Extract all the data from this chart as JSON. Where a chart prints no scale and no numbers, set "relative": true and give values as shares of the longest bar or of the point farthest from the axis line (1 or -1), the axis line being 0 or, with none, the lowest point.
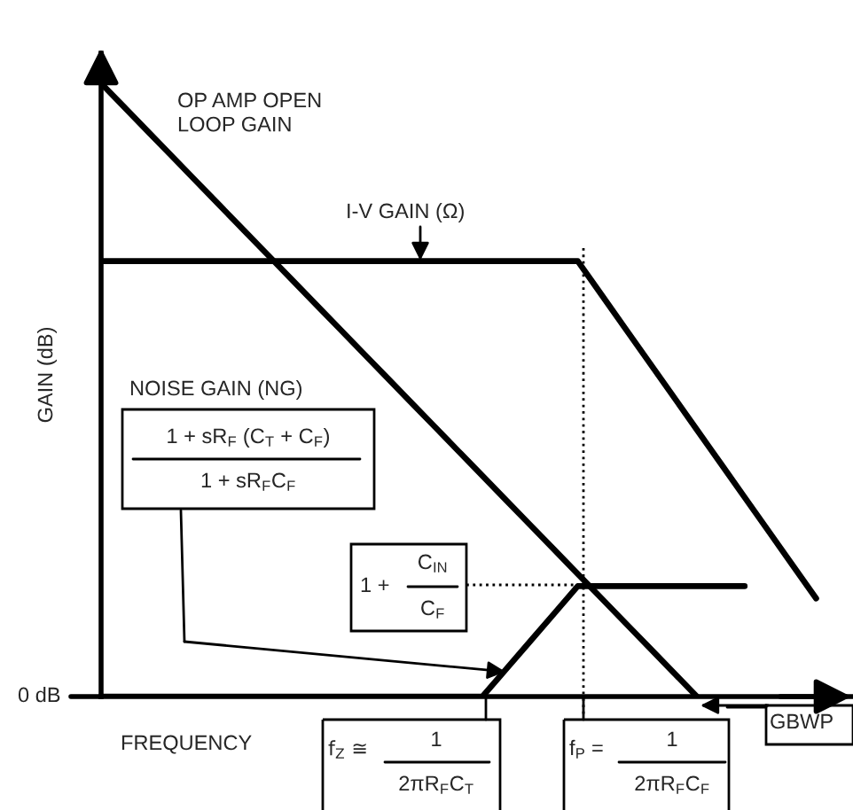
{
  "chart_data": {
    "type": "line",
    "relative": true,
    "ylabel": "GAIN (dB)",
    "categories": [
      null,
      null,
      null,
      null,
      null,
      null,
      null,
      null,
      null,
      null,
      null,
      null,
      null,
      null,
      null,
      null,
      null,
      null,
      null,
      null,
      null,
      null,
      null,
      null,
      null,
      null,
      null,
      null,
      null,
      null,
      null,
      null
    ],
    "series": [
      {
        "color": "#000000",
        "values": [
          1,
          0.96,
          0.92,
          0.88,
          0.84,
          0.8,
          0.76,
          0.72,
          0.68,
          0.64,
          0.6,
          0.56,
          0.52,
          0.48,
          0.44,
          0.4,
          0.36,
          0.32,
          0.28,
          0.24,
          0.2,
          0.16,
          0.12,
          0.08,
          0.04,
          0,
          null,
          null,
          null,
          null,
          null,
          null
        ]
      },
      {
        "color": "#000000",
        "values": [
          0.71,
          0.71,
          0.71,
          0.71,
          0.71,
          0.71,
          0.71,
          0.71,
          0.71,
          0.71,
          0.71,
          0.71,
          0.71,
          0.71,
          0.71,
          0.71,
          0.71,
          0.71,
          0.71,
          0.71,
          0.71,
          0.655,
          0.6,
          0.545,
          0.49,
          0.435,
          0.38,
          0.325,
          0.27,
          0.215,
          0.16,
          null
        ]
      },
      {
        "color": "#000000",
        "values": [
          0,
          0,
          0,
          0,
          0,
          0,
          0,
          0,
          0,
          0,
          0,
          0,
          0,
          0,
          0,
          0,
          0,
          0.045,
          0.09,
          0.135,
          0.18,
          0.18,
          0.18,
          0.18,
          0.18,
          0.18,
          0.18,
          0.18,
          null,
          null,
          null,
          null
        ]
      }
    ],
    "marker": "none",
    "line_style": "solid",
    "annotations": [
      "OP AMP OPEN\nLOOP GAIN",
      "I-V GAIN (Ω)",
      "NOISE GAIN (NG)",
      "1 + sR$_{F}$ (C$_{T}$ + C$_{F}$)",
      "1 + sR$_{F}$C$_{F}$",
      "1 +",
      "C$_{IN}$",
      "C$_{F}$",
      "FREQUENCY",
      "0 dB",
      "f$_{Z}$ ≅",
      "1",
      "2πR$_{F}$C$_{T}$",
      "f$_{P}$ =",
      "1",
      "2πR$_{F}$C$_{F}$",
      "GBWP"
    ]
  }
}
